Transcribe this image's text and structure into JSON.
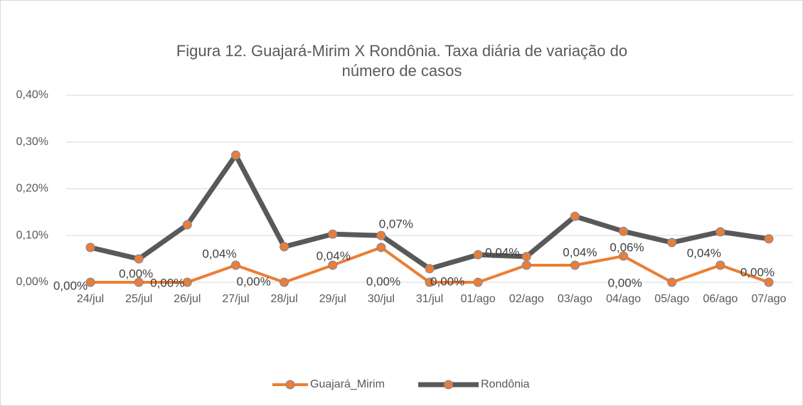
{
  "chart_data": {
    "type": "line",
    "title": "Figura 12. Guajará-Mirim X Rondônia. Taxa diária de variação do número de casos",
    "categories": [
      "24/jul",
      "25/jul",
      "26/jul",
      "27/jul",
      "28/jul",
      "29/jul",
      "30/jul",
      "31/jul",
      "01/ago",
      "02/ago",
      "03/ago",
      "04/ago",
      "05/ago",
      "06/ago",
      "07/ago"
    ],
    "series": [
      {
        "name": "Guajará_Mirim",
        "color": "#ED7D31",
        "marker_color": "#ED7D31",
        "values": [
          0,
          0,
          0,
          0.0365,
          0,
          0.0365,
          0.0745,
          0,
          0,
          0.0365,
          0.0365,
          0.056,
          0,
          0.0365,
          0
        ],
        "value_labels": [
          "0,00%",
          "0,00%",
          "0,00%",
          "0,04%",
          "0,00%",
          "0,04%",
          "0,07%",
          "0,00%",
          "0,00%",
          "0,04%",
          "0,04%",
          "0,06%",
          "0,00%",
          "0,04%",
          "0,00%"
        ]
      },
      {
        "name": "Rondônia",
        "color": "#595959",
        "marker_color": "#ED7D31",
        "values": [
          0.0745,
          0.05,
          0.123,
          0.272,
          0.076,
          0.103,
          0.1,
          0.029,
          0.059,
          0.055,
          0.141,
          0.109,
          0.085,
          0.108,
          0.093
        ]
      }
    ],
    "ylim": [
      0,
      0.4
    ],
    "yticks": [
      {
        "value": 0,
        "label": "0,00%"
      },
      {
        "value": 0.1,
        "label": "0,10%"
      },
      {
        "value": 0.2,
        "label": "0,20%"
      },
      {
        "value": 0.3,
        "label": "0,30%"
      },
      {
        "value": 0.4,
        "label": "0,40%"
      }
    ],
    "grid": true
  }
}
